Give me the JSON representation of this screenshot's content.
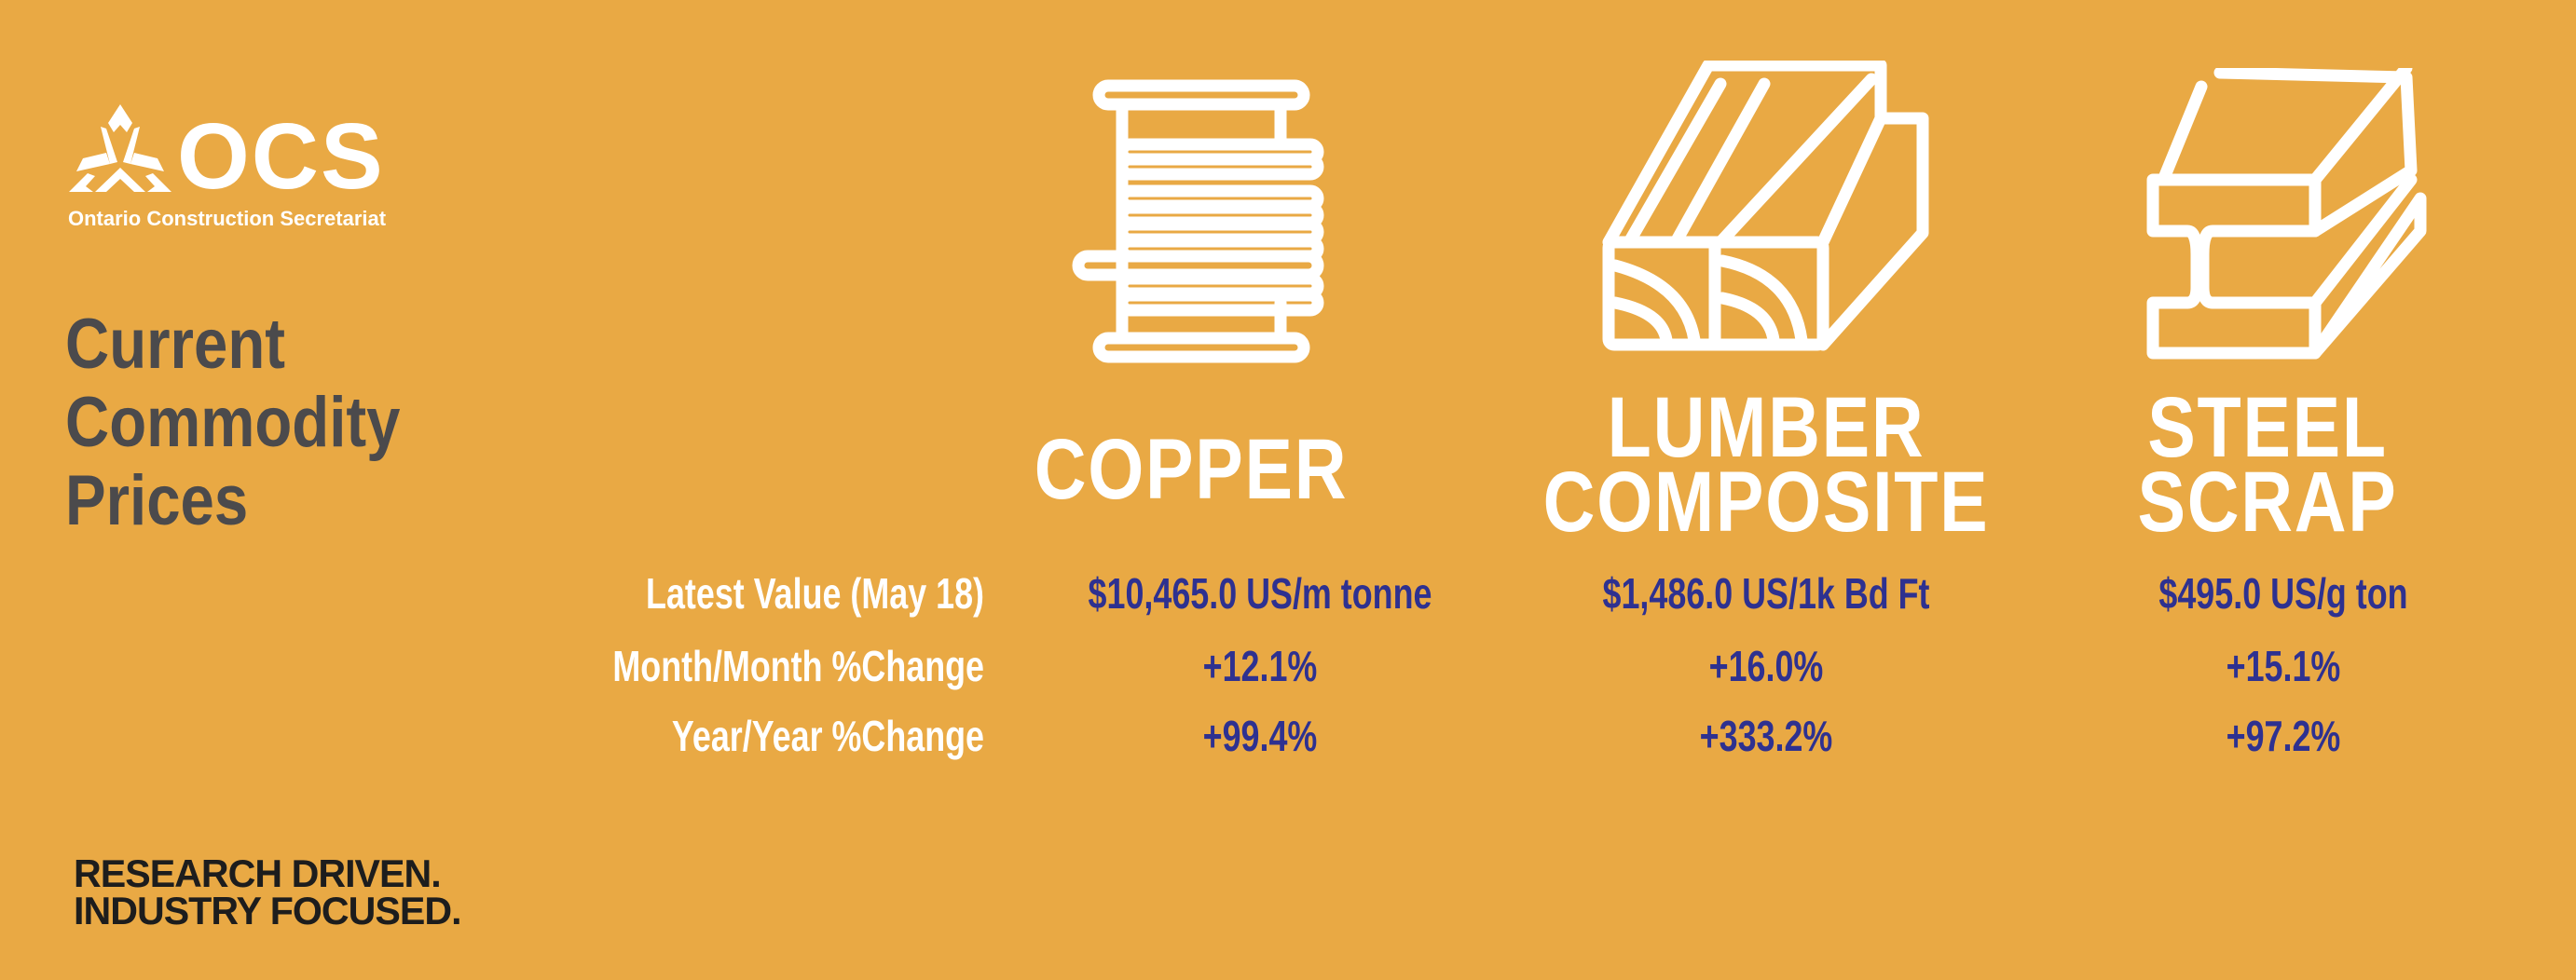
{
  "brand": {
    "logo_text": "OCS",
    "org_name": "Ontario Construction Secretariat",
    "tagline": [
      "RESEARCH DRIVEN.",
      "INDUSTRY FOCUSED."
    ]
  },
  "title_lines": [
    "Current",
    "Commodity",
    "Prices"
  ],
  "row_labels": [
    "Latest Value (May 18)",
    "Month/Month %Change",
    "Year/Year %Change"
  ],
  "commodities": [
    {
      "name_lines": [
        "COPPER"
      ],
      "icon": "wire-spool-icon",
      "latest": "$10,465.0 US/m tonne",
      "mom": "+12.1%",
      "yoy": "+99.4%"
    },
    {
      "name_lines": [
        "LUMBER",
        "COMPOSITE"
      ],
      "icon": "lumber-icon",
      "latest": "$1,486.0 US/1k Bd Ft",
      "mom": "+16.0%",
      "yoy": "+333.2%"
    },
    {
      "name_lines": [
        "STEEL",
        "SCRAP"
      ],
      "icon": "steel-beam-icon",
      "latest": "$495.0 US/g ton",
      "mom": "+15.1%",
      "yoy": "+97.2%"
    }
  ],
  "colors": {
    "background": "#E9A944",
    "value_text": "#2E3190",
    "title_text": "#4B4A4C",
    "header_text": "#FFFFFF"
  }
}
